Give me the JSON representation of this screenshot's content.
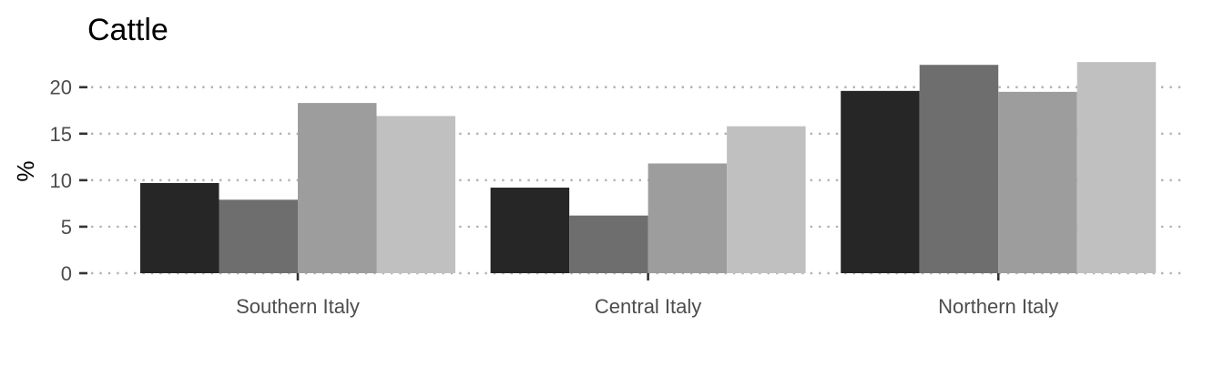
{
  "chart_data": {
    "type": "bar",
    "title": "Cattle",
    "xlabel": "",
    "ylabel": "%",
    "categories": [
      "Southern Italy",
      "Central Italy",
      "Northern Italy"
    ],
    "series": [
      {
        "values": [
          9.7,
          9.2,
          19.6
        ],
        "color": "#262626"
      },
      {
        "values": [
          7.9,
          6.2,
          22.4
        ],
        "color": "#6e6e6e"
      },
      {
        "values": [
          18.3,
          11.8,
          19.5
        ],
        "color": "#9d9d9d"
      },
      {
        "values": [
          16.9,
          15.8,
          22.7
        ],
        "color": "#c0c0c0"
      }
    ],
    "ylim": [
      0,
      23.5
    ],
    "yticks": [
      0,
      5,
      10,
      15,
      20
    ],
    "grid": true,
    "legend": "none"
  }
}
